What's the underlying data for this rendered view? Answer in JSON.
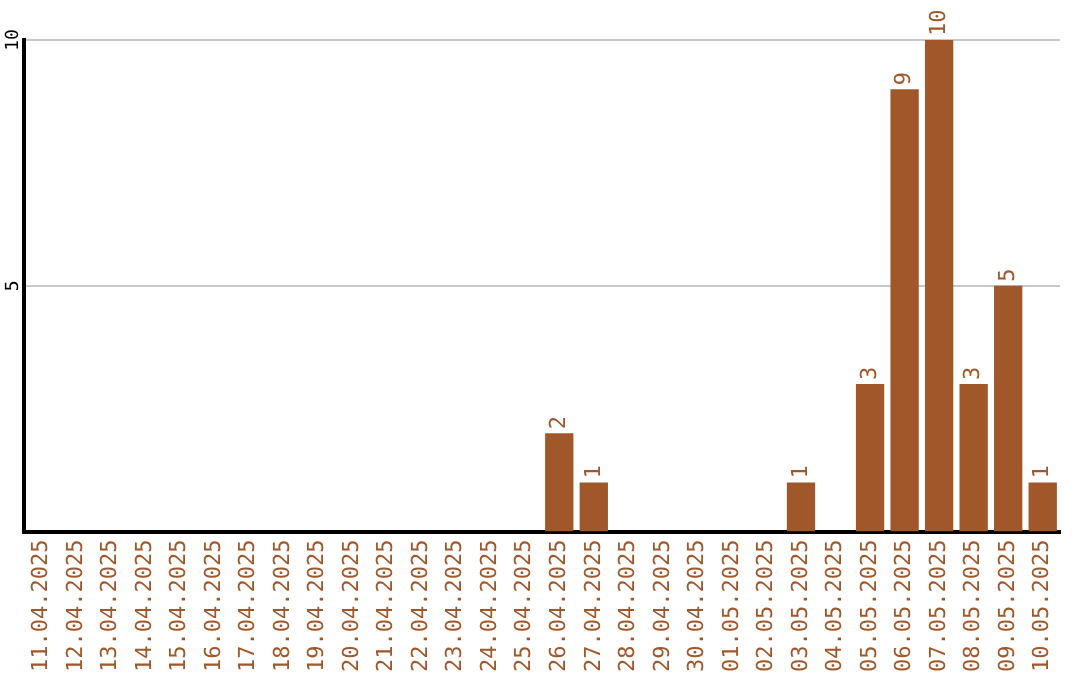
{
  "chart_data": {
    "type": "bar",
    "categories": [
      "11.04.2025",
      "12.04.2025",
      "13.04.2025",
      "14.04.2025",
      "15.04.2025",
      "16.04.2025",
      "17.04.2025",
      "18.04.2025",
      "19.04.2025",
      "20.04.2025",
      "21.04.2025",
      "22.04.2025",
      "23.04.2025",
      "24.04.2025",
      "25.04.2025",
      "26.04.2025",
      "27.04.2025",
      "28.04.2025",
      "29.04.2025",
      "30.04.2025",
      "01.05.2025",
      "02.05.2025",
      "03.05.2025",
      "04.05.2025",
      "05.05.2025",
      "06.05.2025",
      "07.05.2025",
      "08.05.2025",
      "09.05.2025",
      "10.05.2025"
    ],
    "values": [
      0,
      0,
      0,
      0,
      0,
      0,
      0,
      0,
      0,
      0,
      0,
      0,
      0,
      0,
      0,
      2,
      1,
      0,
      0,
      0,
      0,
      0,
      1,
      0,
      3,
      9,
      10,
      3,
      5,
      1
    ],
    "value_labels": [
      null,
      null,
      null,
      null,
      null,
      null,
      null,
      null,
      null,
      null,
      null,
      null,
      null,
      null,
      null,
      "2",
      "1",
      null,
      null,
      null,
      null,
      null,
      "1",
      null,
      "3",
      "9",
      "10",
      "3",
      "5",
      "1"
    ],
    "color": "#a0572a",
    "ylim": [
      0,
      10
    ],
    "yticks": [
      5,
      10
    ],
    "grid": "y",
    "legend": false
  }
}
